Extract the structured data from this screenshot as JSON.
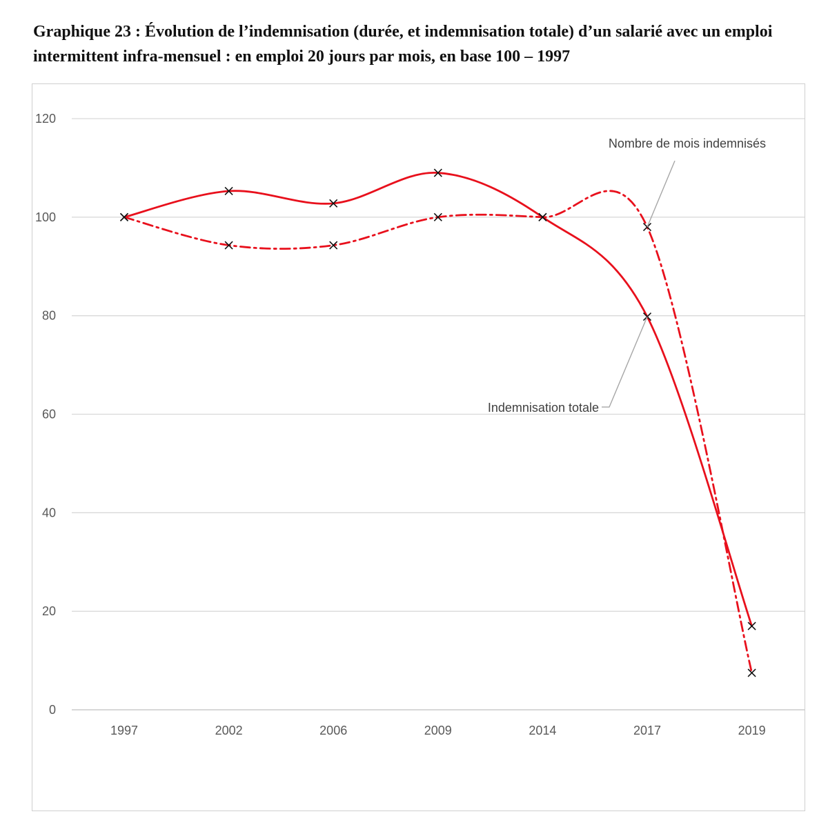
{
  "figure": {
    "title": "Graphique 23 : Évolution de l’indemnisation (durée, et indemnisation totale) d’un salarié avec un emploi intermittent infra-mensuel : en emploi 20 jours par mois, en base 100 – 1997"
  },
  "chart_data": {
    "type": "line",
    "title": "",
    "xlabel": "",
    "ylabel": "",
    "categories": [
      "1997",
      "2002",
      "2006",
      "2009",
      "2014",
      "2017",
      "2019"
    ],
    "ylim": [
      0,
      120
    ],
    "yticks": [
      "0",
      "20",
      "40",
      "60",
      "80",
      "100",
      "120"
    ],
    "grid": "horizontal",
    "legend": "none",
    "series": [
      {
        "name": "Indemnisation totale",
        "values": [
          100,
          105.3,
          102.8,
          109,
          100,
          79.8,
          17
        ],
        "color": "#e8101c",
        "line_style": "solid",
        "marker": "x"
      },
      {
        "name": "Nombre de mois indemnisés",
        "values": [
          100,
          94.3,
          94.3,
          100,
          100,
          98,
          7.5
        ],
        "color": "#e8101c",
        "line_style": "dash-dot",
        "marker": "x"
      }
    ],
    "annotations": [
      {
        "text": "Nombre de mois indemnisés",
        "series": "Nombre de mois indemnisés",
        "category": "2017"
      },
      {
        "text": "Indemnisation totale",
        "series": "Indemnisation totale",
        "category": "2017"
      }
    ]
  }
}
